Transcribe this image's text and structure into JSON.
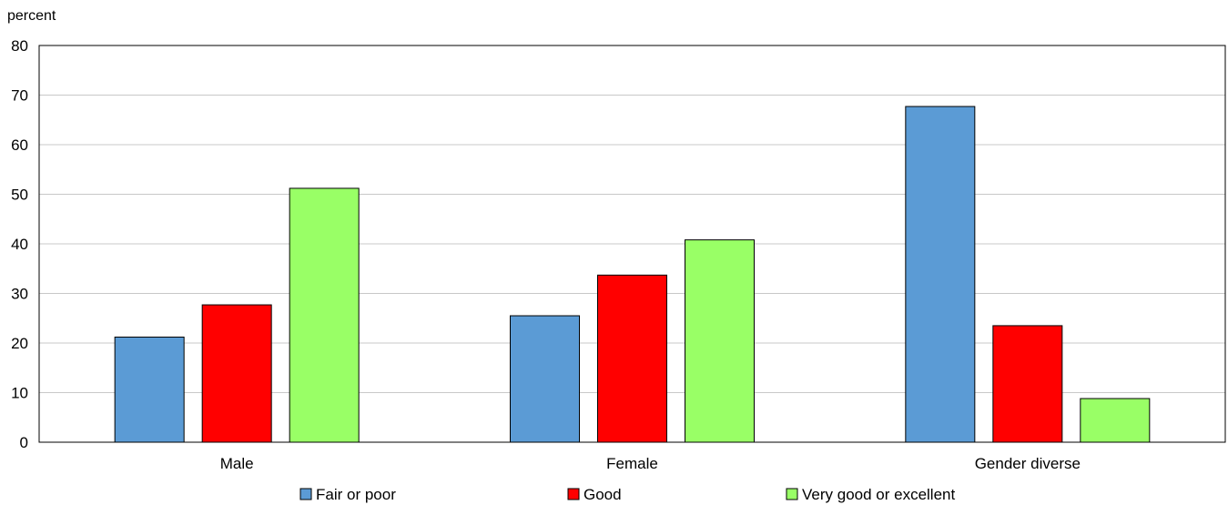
{
  "chart_data": {
    "type": "bar",
    "title": "",
    "xlabel": "",
    "ylabel": "percent",
    "ylim": [
      0,
      80
    ],
    "yticks": [
      0,
      10,
      20,
      30,
      40,
      50,
      60,
      70,
      80
    ],
    "grid": true,
    "legend_position": "bottom",
    "categories": [
      "Male",
      "Female",
      "Gender diverse"
    ],
    "series": [
      {
        "name": "Fair or poor",
        "color": "#5b9bd5",
        "values": [
          21.2,
          25.5,
          67.7
        ]
      },
      {
        "name": "Good",
        "color": "#ff0000",
        "values": [
          27.7,
          33.7,
          23.5
        ]
      },
      {
        "name": "Very good or excellent",
        "color": "#99ff66",
        "values": [
          51.2,
          40.8,
          8.8
        ]
      }
    ]
  }
}
